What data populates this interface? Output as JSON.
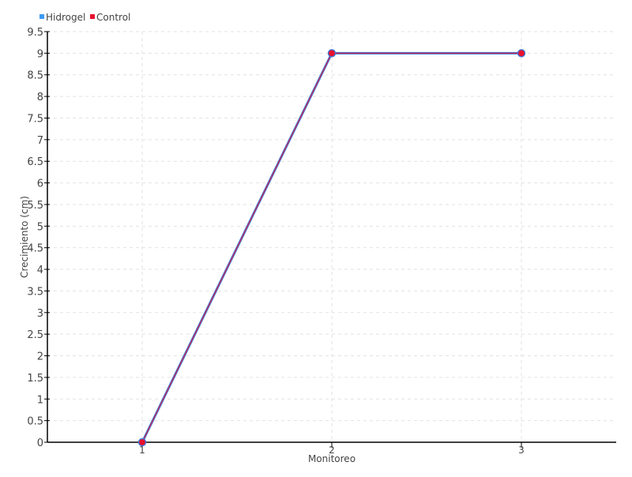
{
  "chart_data": {
    "type": "line",
    "title": "",
    "xlabel": "Monitoreo",
    "ylabel": "Crecimiento (cm)",
    "categories": [
      "1",
      "2",
      "3"
    ],
    "x": [
      1,
      2,
      3
    ],
    "xlim": [
      0.5,
      3.5
    ],
    "ylim": [
      0,
      9.5
    ],
    "ytick_step": 0.5,
    "grid": true,
    "legend_position": "top-left",
    "series": [
      {
        "name": "Hidrogel",
        "values": [
          0,
          9,
          9
        ],
        "color": "#3a7be0",
        "legend_color": "#3d9af5"
      },
      {
        "name": "Control",
        "values": [
          0,
          9,
          9
        ],
        "color": "#e8112d",
        "legend_color": "#e8112d"
      }
    ]
  }
}
